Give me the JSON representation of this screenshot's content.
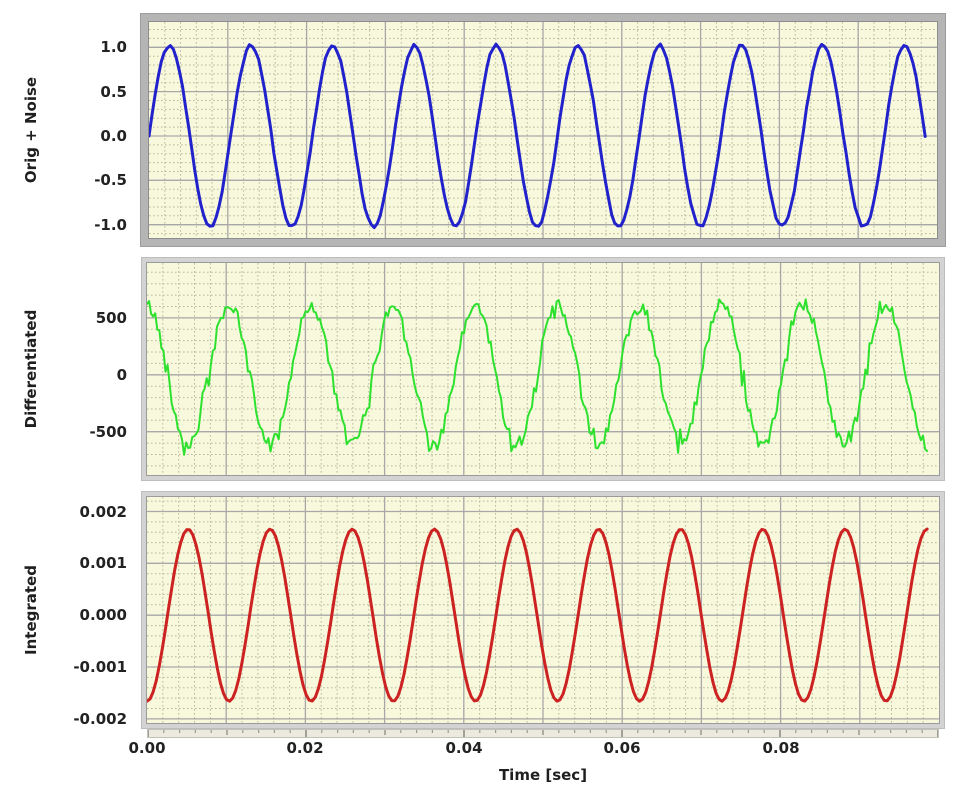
{
  "window": {
    "background": "#ffffff",
    "description": "Front panel with three stacked waveform graphs: original noisy sine, its derivative, and its integral"
  },
  "x_axis": {
    "title": "Time [sec]",
    "min": 0,
    "max": 0.1,
    "major_grid_step": 0.01,
    "minor_grid_step": 0.002,
    "ticks": [
      {
        "v": 0.0,
        "label": "0.00"
      },
      {
        "v": 0.02,
        "label": "0.02"
      },
      {
        "v": 0.04,
        "label": "0.04"
      },
      {
        "v": 0.06,
        "label": "0.06"
      },
      {
        "v": 0.08,
        "label": "0.08"
      }
    ]
  },
  "style": {
    "plot_background": "#f8f8dd",
    "minor_grid_color": "#b9b99b",
    "major_grid_color": "#a8a8a8",
    "text_color": "#222222",
    "selected_frame_color": "#b5b5b5",
    "frame_color": "#d3d3d3",
    "tick_minor_color": "#9a9a8e",
    "tick_mid_color": "#82827a",
    "tick_major_color": "#6f6f68"
  },
  "chart_data": [
    {
      "type": "line",
      "ylabel": "Orig + Noise",
      "y": {
        "min": -1.15,
        "max": 1.285,
        "major_grid_step": 0.5,
        "minor_grid_step": 0.1,
        "ticks": [
          {
            "v": 1.0,
            "label": "1.0"
          },
          {
            "v": 0.5,
            "label": "0.5"
          },
          {
            "v": 0.0,
            "label": "0.0"
          },
          {
            "v": -0.5,
            "label": "-0.5"
          },
          {
            "v": -1.0,
            "label": "-1.0"
          }
        ]
      },
      "series": [
        {
          "name": "orig-plus-noise",
          "color": "#2222cc",
          "line_width": 3,
          "waveform": "sine",
          "amplitude": 1.02,
          "frequency_hz": 96.45,
          "phase_deg": 0,
          "offset": 0,
          "noise_amplitude": 0.018,
          "spike_chance": 0,
          "spike_gain": 1,
          "t_start": 0,
          "t_end": 0.0985,
          "samples": 256,
          "seed": 11,
          "cycles_visible": 9.5
        }
      ]
    },
    {
      "type": "line",
      "ylabel": "Differentiated",
      "y": {
        "min": -880,
        "max": 982,
        "major_grid_step": 500,
        "minor_grid_step": 100,
        "ticks": [
          {
            "v": 500,
            "label": "500"
          },
          {
            "v": 0,
            "label": "0"
          },
          {
            "v": -500,
            "label": "-500"
          }
        ]
      },
      "series": [
        {
          "name": "differentiated",
          "color": "#2ee12e",
          "line_width": 2,
          "waveform": "sine",
          "amplitude": 609,
          "frequency_hz": 96.45,
          "phase_deg": 90,
          "offset": 0,
          "noise_amplitude": 66,
          "spike_chance": 0.1,
          "spike_gain": 2.0,
          "t_start": 0,
          "t_end": 0.0985,
          "samples": 380,
          "seed": 42,
          "cycles_visible": 9.5
        }
      ]
    },
    {
      "type": "line",
      "ylabel": "Integrated",
      "y": {
        "min": -0.00208,
        "max": 0.00228,
        "major_grid_step": 0.001,
        "minor_grid_step": 0.0002,
        "ticks": [
          {
            "v": 0.002,
            "label": "0.002"
          },
          {
            "v": 0.001,
            "label": "0.001"
          },
          {
            "v": 0.0,
            "label": "0.000"
          },
          {
            "v": -0.001,
            "label": "-0.001"
          },
          {
            "v": -0.002,
            "label": "-0.002"
          }
        ]
      },
      "series": [
        {
          "name": "integrated",
          "color": "#cc2222",
          "line_width": 3,
          "waveform": "sine",
          "amplitude": 0.00166,
          "frequency_hz": 96.45,
          "phase_deg": -90,
          "offset": 0,
          "noise_amplitude": 0,
          "spike_chance": 0,
          "spike_gain": 1,
          "t_start": 0,
          "t_end": 0.0985,
          "samples": 256,
          "seed": 1,
          "cycles_visible": 9.5
        }
      ]
    }
  ]
}
